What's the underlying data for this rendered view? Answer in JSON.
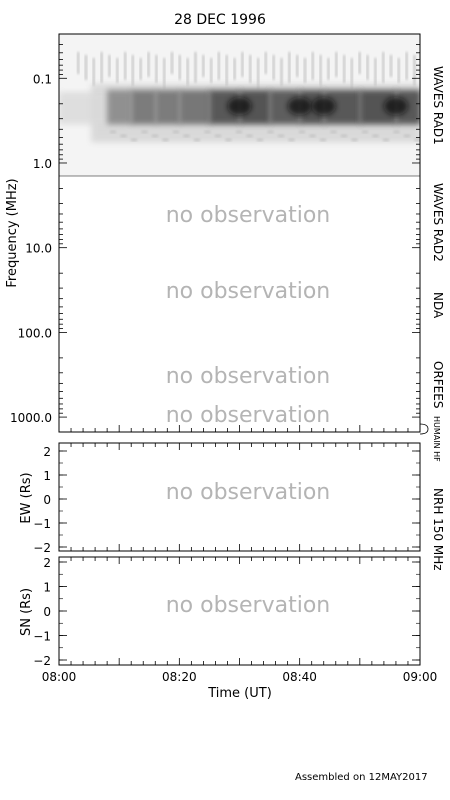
{
  "title": "28 DEC 1996",
  "footer": "Assembled on 12MAY2017",
  "no_observation": "no observation",
  "chart_data": [
    {
      "type": "heatmap",
      "panel": "dynamic spectrum",
      "ylabel": "Frequency (MHz)",
      "y_scale": "log",
      "y_inverted": true,
      "ylim": [
        0.03,
        1500
      ],
      "y_ticks": [
        "0.1",
        "1.0",
        "10.0",
        "100.0",
        "1000.0"
      ],
      "x_ticks": [
        "08:00",
        "08:20",
        "08:40",
        "09:00"
      ],
      "xlim": [
        "08:00",
        "09:00"
      ],
      "bands": [
        {
          "name": "WAVES RAD1",
          "range_mhz": [
            0.02,
            1.0
          ],
          "observed": true
        },
        {
          "name": "WAVES RAD2",
          "range_mhz": [
            1.0,
            13.8
          ],
          "observed": false
        },
        {
          "name": "NDA",
          "range_mhz": [
            13.8,
            400
          ],
          "observed": false
        },
        {
          "name": "ORFEES",
          "range_mhz": [
            400,
            1500
          ],
          "observed": false
        },
        {
          "name": "HUMAIN HF",
          "observed": false
        }
      ],
      "emission": {
        "description_band_mhz": [
          0.13,
          0.35
        ],
        "start": "08:07",
        "end": "09:00",
        "intensity_profile": [
          {
            "t": "08:08",
            "level": 0.45
          },
          {
            "t": "08:12",
            "level": 0.6
          },
          {
            "t": "08:16",
            "level": 0.65
          },
          {
            "t": "08:20",
            "level": 0.6
          },
          {
            "t": "08:25",
            "level": 0.7
          },
          {
            "t": "08:30",
            "level": 0.9
          },
          {
            "t": "08:35",
            "level": 0.75
          },
          {
            "t": "08:40",
            "level": 0.8
          },
          {
            "t": "08:44",
            "level": 0.85
          },
          {
            "t": "08:50",
            "level": 0.75
          },
          {
            "t": "08:56",
            "level": 0.9
          },
          {
            "t": "09:00",
            "level": 0.7
          }
        ]
      }
    },
    {
      "type": "line",
      "panel": "NRH 150 MHz EW",
      "ylabel": "EW (Rs)",
      "ylim": [
        -2,
        2
      ],
      "y_ticks": [
        "2",
        "1",
        "0",
        "−1",
        "−2"
      ],
      "observed": false
    },
    {
      "type": "line",
      "panel": "NRH 150 MHz SN",
      "ylabel": "SN (Rs)",
      "ylim": [
        -2,
        2
      ],
      "y_ticks": [
        "2",
        "1",
        "0",
        "−1",
        "−2"
      ],
      "xlabel": "Time (UT)",
      "observed": false
    }
  ],
  "right_labels": {
    "rad1": "WAVES RAD1",
    "rad2": "WAVES RAD2",
    "nda": "NDA",
    "orfees": "ORFEES",
    "humain": "HUMAIN HF",
    "nrh": "NRH 150 MHz"
  }
}
